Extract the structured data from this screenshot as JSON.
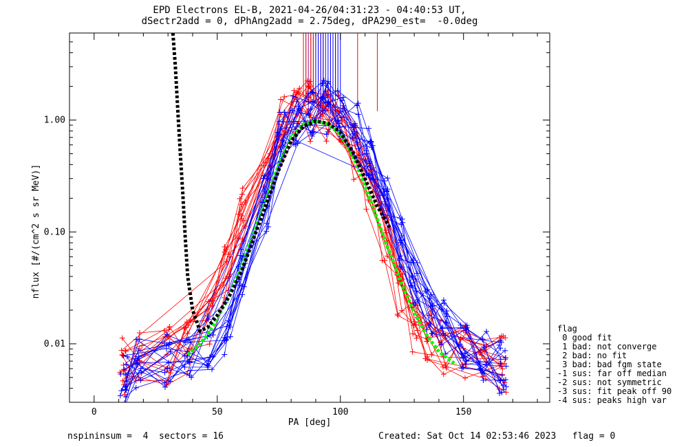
{
  "title_line1": "EPD Electrons EL-B, 2021-04-26/04:31:23 - 04:40:53 UT,",
  "title_line2": "dSectr2add = 0, dPhAng2add = 2.75deg, dPA290_est=  -0.0deg",
  "footer_left": "nspininsum =  4  sectors = 16",
  "footer_right": "Created: Sat Oct 14 02:53:46 2023   flag = 0",
  "legend": {
    "title": "flag",
    "items": [
      " 0 good fit",
      " 1 bad: not converge",
      " 2 bad: no fit",
      " 3 bad: bad fgm state",
      "-1 sus: far off median",
      "-2 sus: not symmetric",
      "-3 sus: fit peak off 90",
      "-4 sus: peaks high var"
    ]
  },
  "colors": {
    "red": "#ff0000",
    "blue": "#0000ff",
    "green": "#00ff00",
    "black": "#000000",
    "purple": "#8b1a8b"
  },
  "chart_data": {
    "type": "line",
    "xlabel": "PA [deg]",
    "ylabel": "nflux [#/(cm^2 s sr MeV)]",
    "xlim": [
      -10,
      185
    ],
    "ylim": [
      0.003,
      6
    ],
    "yscale": "log",
    "xticks": [
      0,
      50,
      100,
      150
    ],
    "xtick_labels": [
      "0",
      "50",
      "100",
      "150"
    ],
    "yticks": [
      0.01,
      0.1,
      1.0
    ],
    "ytick_labels": [
      "0.01",
      "0.10",
      "1.00"
    ],
    "fit_curves": [
      {
        "name": "green-fit",
        "color": "green",
        "x": [
          38,
          42,
          46,
          50,
          55,
          60,
          65,
          70,
          75,
          80,
          85,
          90,
          95,
          100,
          105,
          110,
          115,
          120,
          125,
          130,
          135,
          140,
          147
        ],
        "y": [
          0.008,
          0.0095,
          0.012,
          0.017,
          0.027,
          0.05,
          0.1,
          0.2,
          0.4,
          0.7,
          0.92,
          0.98,
          0.92,
          0.75,
          0.48,
          0.26,
          0.13,
          0.065,
          0.034,
          0.019,
          0.012,
          0.0085,
          0.0065
        ]
      },
      {
        "name": "black-fit",
        "color": "black",
        "x": [
          32,
          33,
          34,
          35,
          36,
          37,
          38,
          40,
          43,
          46,
          50,
          55,
          60,
          65,
          70,
          75,
          80,
          85,
          90,
          95,
          100,
          105,
          110,
          115,
          120
        ],
        "y": [
          6,
          3,
          1.2,
          0.5,
          0.22,
          0.09,
          0.04,
          0.02,
          0.013,
          0.014,
          0.018,
          0.027,
          0.045,
          0.09,
          0.18,
          0.36,
          0.65,
          0.88,
          0.98,
          0.93,
          0.78,
          0.52,
          0.3,
          0.17,
          0.11
        ]
      }
    ],
    "red_points_x": [
      12,
      18,
      30,
      38,
      47,
      54,
      60,
      70,
      76,
      82,
      88,
      94,
      100,
      106,
      112,
      118,
      124,
      130,
      136,
      142,
      150,
      158,
      166
    ],
    "red_points_y": [
      0.0065,
      0.008,
      0.008,
      0.009,
      0.018,
      0.04,
      0.14,
      0.35,
      0.95,
      1.25,
      1.2,
      1.1,
      0.95,
      0.55,
      0.3,
      0.1,
      0.03,
      0.015,
      0.012,
      0.0095,
      0.009,
      0.008,
      0.0065
    ],
    "blue_points_x": [
      12,
      18,
      30,
      38,
      47,
      54,
      60,
      70,
      76,
      82,
      88,
      94,
      100,
      106,
      112,
      118,
      124,
      130,
      136,
      142,
      150,
      158,
      166
    ],
    "blue_points_y": [
      0.005,
      0.007,
      0.007,
      0.008,
      0.01,
      0.014,
      0.04,
      0.18,
      0.7,
      1.05,
      1.2,
      1.3,
      1.25,
      0.8,
      0.5,
      0.2,
      0.08,
      0.035,
      0.02,
      0.014,
      0.01,
      0.008,
      0.006
    ],
    "vertical_spikes": [
      {
        "color": "purple",
        "x": [
          86,
          87,
          88,
          89,
          90,
          91,
          92
        ]
      },
      {
        "color": "red",
        "x": [
          85,
          86,
          88,
          89,
          91,
          92,
          93,
          96,
          98,
          107,
          115
        ]
      },
      {
        "color": "blue",
        "x": [
          90,
          91,
          92,
          93,
          94,
          95,
          96,
          97,
          98,
          99,
          100
        ]
      }
    ]
  }
}
